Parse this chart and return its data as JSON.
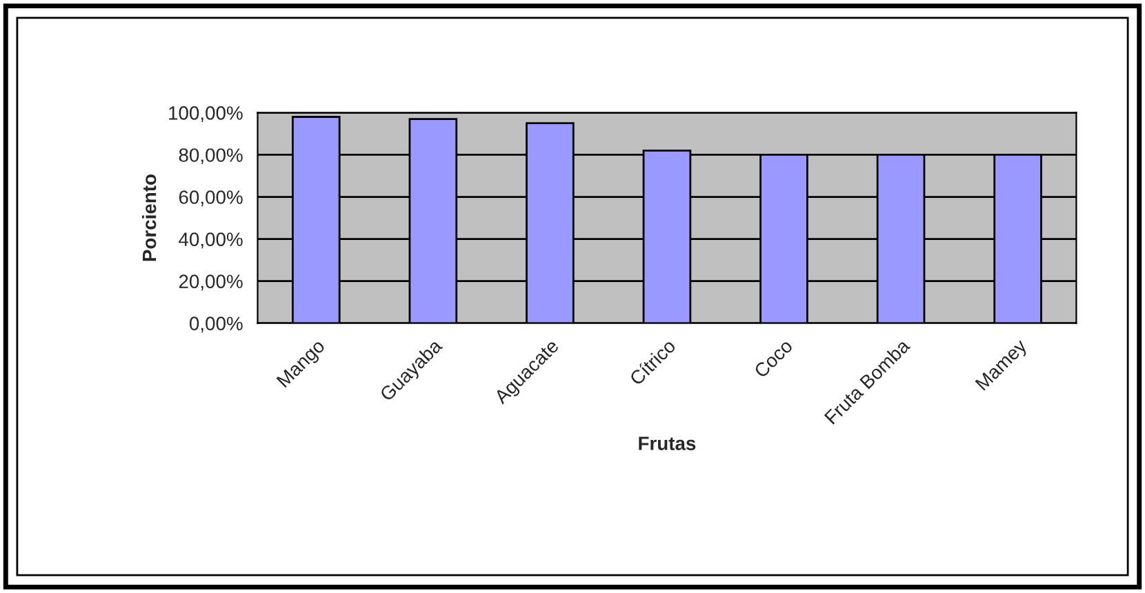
{
  "chart_data": {
    "type": "bar",
    "xlabel": "Frutas",
    "ylabel": "Porciento",
    "categories": [
      "Mango",
      "Guayaba",
      "Aguacate",
      "Cítrico",
      "Coco",
      "Fruta Bomba",
      "Mamey"
    ],
    "values": [
      98,
      97,
      95,
      82,
      80,
      80,
      80
    ],
    "color": "#9999ff",
    "ylim": [
      0,
      100
    ],
    "yticks": [
      {
        "value": 0,
        "label": "0,00%"
      },
      {
        "value": 20,
        "label": "20,00%"
      },
      {
        "value": 40,
        "label": "40,00%"
      },
      {
        "value": 60,
        "label": "60,00%"
      },
      {
        "value": 80,
        "label": "80,00%"
      },
      {
        "value": 100,
        "label": "100,00%"
      }
    ],
    "grid": "y"
  }
}
